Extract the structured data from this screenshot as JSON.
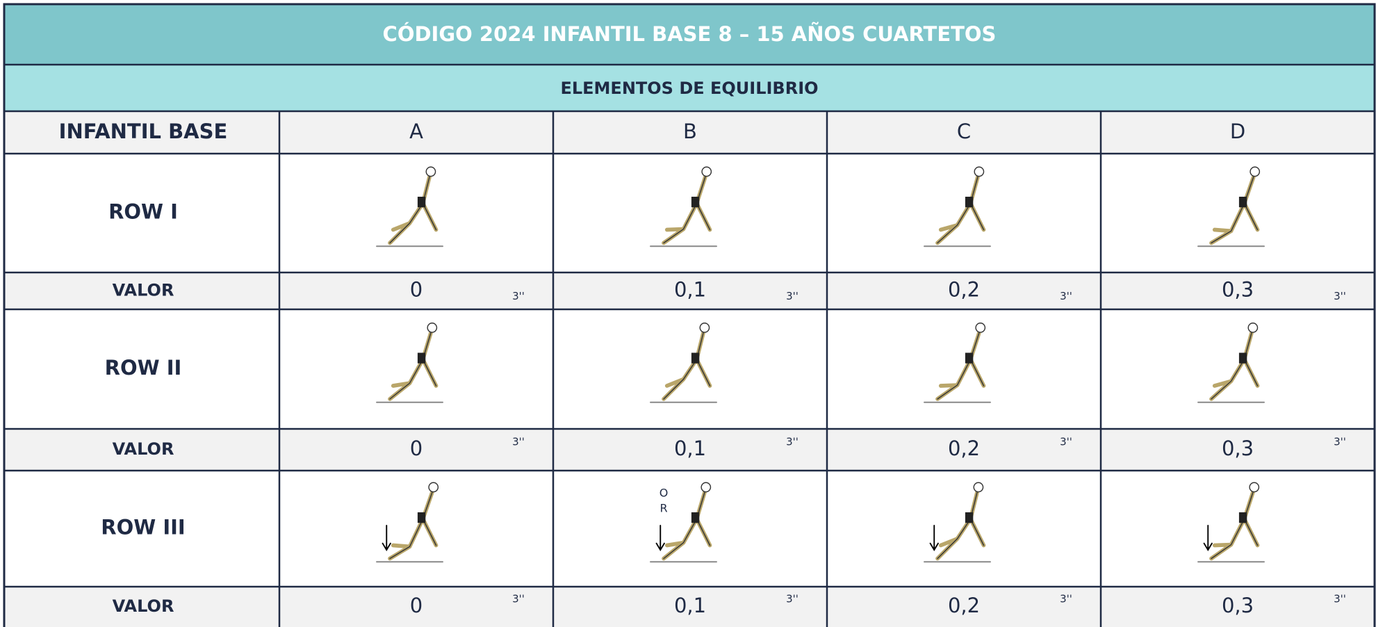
{
  "header": {
    "title": "CÓDIGO 2024 INFANTIL BASE  8 – 15 AÑOS CUARTETOS",
    "subtitle": "ELEMENTOS DE EQUILIBRIO"
  },
  "table": {
    "columns": [
      "INFANTIL BASE",
      "A",
      "B",
      "C",
      "D"
    ],
    "rows": [
      {
        "label": "ROW I",
        "value_label": "VALOR",
        "values": [
          "0",
          "0,1",
          "0,2",
          "0,3"
        ],
        "times": [
          "3''",
          "3''",
          "3''",
          "3''"
        ]
      },
      {
        "label": "ROW II",
        "value_label": "VALOR",
        "values": [
          "0",
          "0,1",
          "0,2",
          "0,3"
        ],
        "times": [
          "3''",
          "3''",
          "3''",
          "3''"
        ]
      },
      {
        "label": "ROW III",
        "value_label": "VALOR",
        "values": [
          "0",
          "0,1",
          "0,2",
          "0,3"
        ],
        "times": [
          "3''",
          "3''",
          "3''",
          "3''"
        ],
        "figure_text": [
          "O",
          "R"
        ]
      }
    ]
  }
}
